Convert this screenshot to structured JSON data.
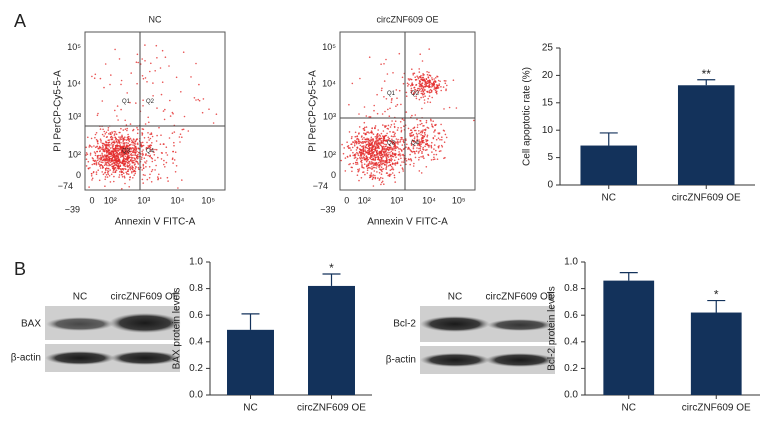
{
  "panel_labels": [
    "A",
    "B"
  ],
  "flow_plots": [
    {
      "title": "NC",
      "x_label": "Annexin V FITC-A",
      "y_label": "PI PerCP-Cy5-5-A",
      "x_ticks": [
        "−39",
        "0",
        "10²",
        "10³",
        "10⁴",
        "10⁵"
      ],
      "y_ticks": [
        "10⁵",
        "10⁴",
        "10³",
        "10²",
        "0",
        "−74"
      ],
      "quadrants": [
        "Q1",
        "Q2",
        "Q3",
        "Q4"
      ]
    },
    {
      "title": "circZNF609 OE",
      "x_label": "Annexin V FITC-A",
      "y_label": "PI PerCP-Cy5-5-A",
      "x_ticks": [
        "−39",
        "0",
        "10²",
        "10³",
        "10⁴",
        "10⁵"
      ],
      "y_ticks": [
        "10⁵",
        "10⁴",
        "10³",
        "10²",
        "0",
        "−74"
      ],
      "quadrants": [
        "Q1",
        "Q2",
        "Q3",
        "Q4"
      ]
    }
  ],
  "blots": [
    {
      "lanes": [
        "NC",
        "circZNF609 OE"
      ],
      "rows": [
        "BAX",
        "β-actin"
      ]
    },
    {
      "lanes": [
        "NC",
        "circZNF609 OE"
      ],
      "rows": [
        "Bcl-2",
        "β-actin"
      ]
    }
  ],
  "chart_data": [
    {
      "type": "bar",
      "y_label": "Cell apoptotic rate (%)",
      "categories": [
        "NC",
        "circZNF609 OE"
      ],
      "values": [
        7.2,
        18.2
      ],
      "errors": [
        2.3,
        1.0
      ],
      "significance": [
        null,
        "**"
      ],
      "color": "#13325b",
      "ylim": [
        0,
        25
      ],
      "yticks": [
        0,
        5,
        10,
        15,
        20,
        25
      ]
    },
    {
      "type": "bar",
      "y_label": "BAX protein levels",
      "categories": [
        "NC",
        "circZNF609 OE"
      ],
      "values": [
        0.49,
        0.82
      ],
      "errors": [
        0.12,
        0.09
      ],
      "significance": [
        null,
        "*"
      ],
      "color": "#13325b",
      "ylim": [
        0,
        1
      ],
      "yticks": [
        {
          "value": 0,
          "label": "0.0"
        },
        0.2,
        0.4,
        0.6,
        0.8,
        {
          "value": 1,
          "label": "1.0"
        }
      ]
    },
    {
      "type": "bar",
      "y_label": "Bcl-2 protein levels",
      "categories": [
        "NC",
        "circZNF609 OE"
      ],
      "values": [
        0.86,
        0.62
      ],
      "errors": [
        0.06,
        0.09
      ],
      "significance": [
        null,
        "*"
      ],
      "color": "#13325b",
      "ylim": [
        0,
        1
      ],
      "yticks": [
        {
          "value": 0,
          "label": "0.0"
        },
        0.2,
        0.4,
        0.6,
        0.8,
        {
          "value": 1,
          "label": "1.0"
        }
      ]
    }
  ]
}
